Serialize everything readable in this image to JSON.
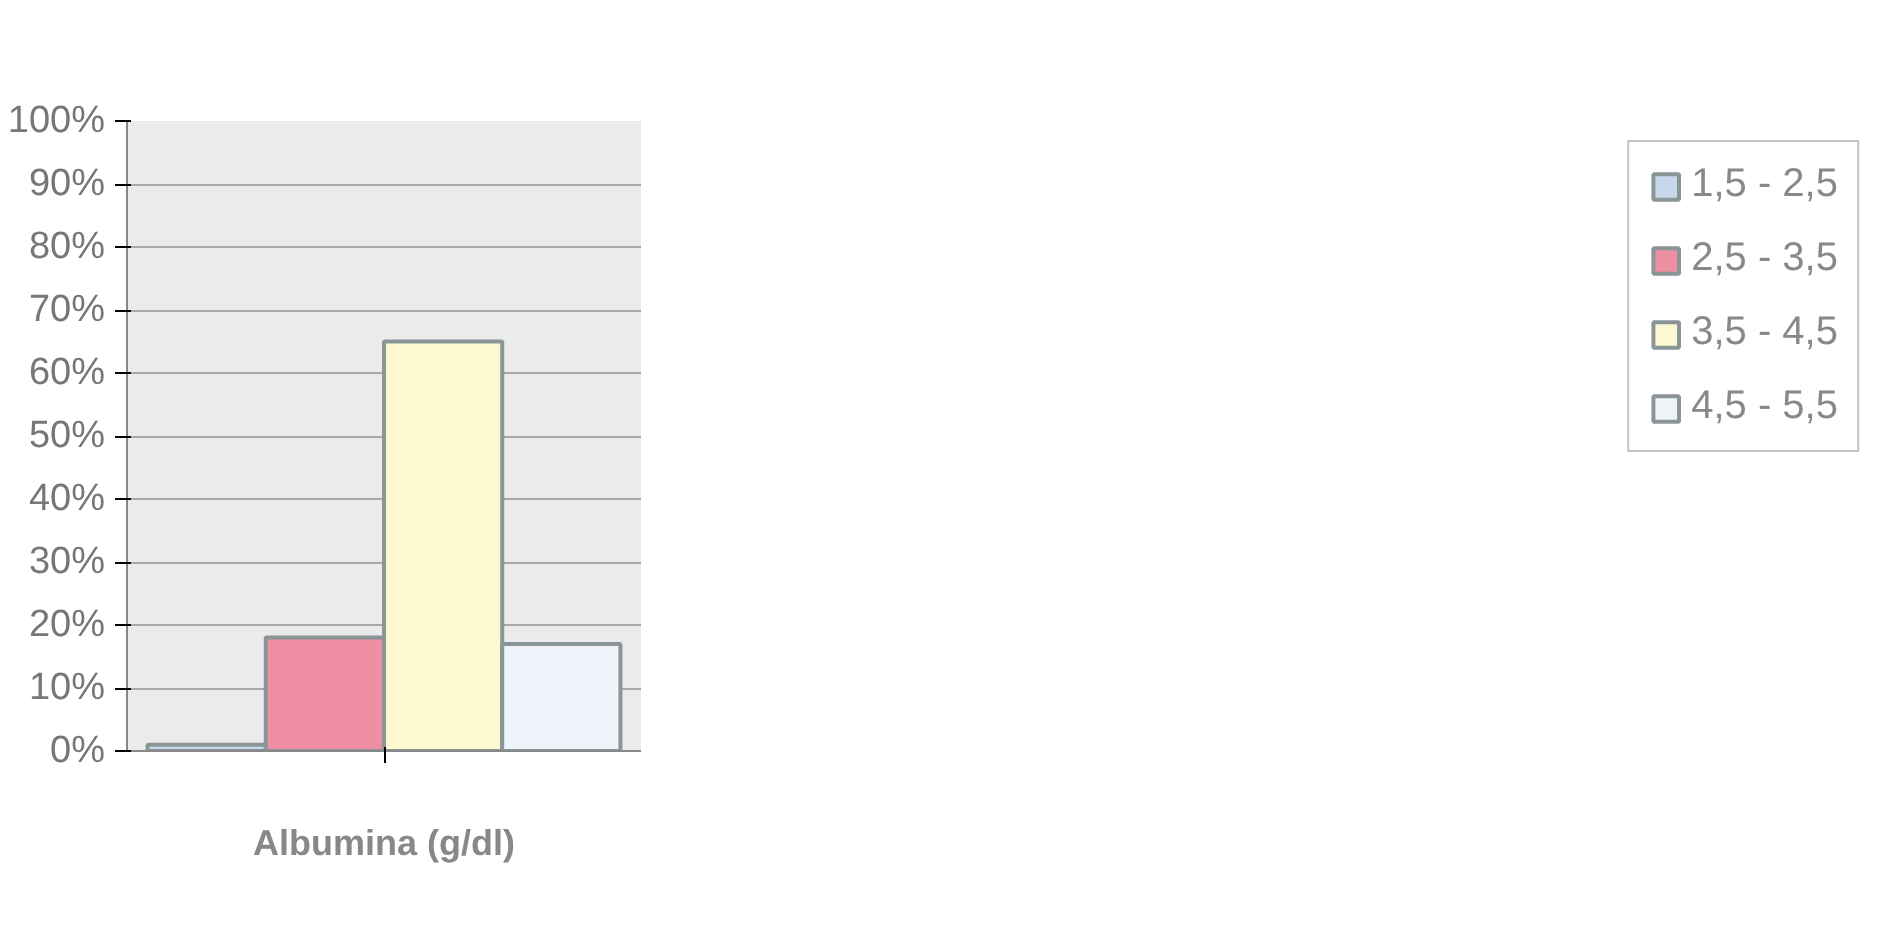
{
  "chart_data": {
    "type": "bar",
    "xlabel": "Albumina (g/dl)",
    "categories": [
      null
    ],
    "series": [
      {
        "name": "1,5 - 2,5",
        "color": "#c8d8ec",
        "values": [
          1
        ]
      },
      {
        "name": "2,5 - 3,5",
        "color": "#ee8fa3",
        "values": [
          18
        ]
      },
      {
        "name": "3,5 - 4,5",
        "color": "#fdf8d0",
        "values": [
          65
        ]
      },
      {
        "name": "4,5 - 5,5",
        "color": "#eef4fa",
        "values": [
          17
        ]
      }
    ],
    "ylim": [
      0,
      100
    ],
    "yticks": [
      {
        "value": 0,
        "label": "0%"
      },
      {
        "value": 10,
        "label": "10%"
      },
      {
        "value": 20,
        "label": "20%"
      },
      {
        "value": 30,
        "label": "30%"
      },
      {
        "value": 40,
        "label": "40%"
      },
      {
        "value": 50,
        "label": "50%"
      },
      {
        "value": 60,
        "label": "60%"
      },
      {
        "value": 70,
        "label": "70%"
      },
      {
        "value": 80,
        "label": "80%"
      },
      {
        "value": 90,
        "label": "90%"
      },
      {
        "value": 100,
        "label": "100%"
      }
    ],
    "grid": "y",
    "legend": "right",
    "tick_labels": "y"
  }
}
